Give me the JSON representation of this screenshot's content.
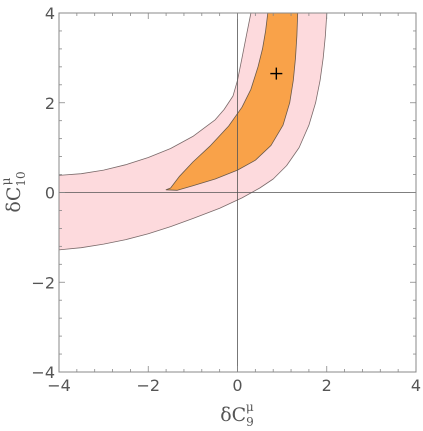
{
  "chart_data": {
    "type": "contour",
    "xlabel": {
      "base": "δC",
      "sub": "9",
      "sup": "μ"
    },
    "ylabel": {
      "base": "δC",
      "sub": "10",
      "sup": "μ"
    },
    "xlim": [
      -4,
      4
    ],
    "ylim": [
      -4,
      4
    ],
    "xticks": [
      -4,
      -2,
      0,
      2,
      4
    ],
    "yticks": [
      -4,
      -2,
      0,
      2,
      4
    ],
    "xtick_labels": [
      "−4",
      "−2",
      "0",
      "2",
      "4"
    ],
    "ytick_labels": [
      "−4",
      "−2",
      "0",
      "2",
      "4"
    ],
    "minor_ticks_per_interval": 4,
    "reference_lines": {
      "x": 0,
      "y": 0
    },
    "best_fit": {
      "x": 0.87,
      "y": 2.65,
      "marker": "plus"
    },
    "regions": [
      {
        "name": "outer",
        "fill": "#fddadd",
        "stroke": "#7a6a6a",
        "boundary": [
          [
            -4.0,
            0.38
          ],
          [
            -3.5,
            0.42
          ],
          [
            -3.0,
            0.5
          ],
          [
            -2.5,
            0.62
          ],
          [
            -2.0,
            0.78
          ],
          [
            -1.5,
            0.98
          ],
          [
            -1.0,
            1.25
          ],
          [
            -0.5,
            1.62
          ],
          [
            -0.3,
            1.85
          ],
          [
            -0.1,
            2.15
          ],
          [
            0.0,
            2.5
          ],
          [
            0.1,
            3.0
          ],
          [
            0.2,
            3.5
          ],
          [
            0.3,
            4.0
          ],
          [
            2.0,
            4.0
          ],
          [
            1.97,
            3.5
          ],
          [
            1.92,
            3.0
          ],
          [
            1.85,
            2.5
          ],
          [
            1.75,
            2.0
          ],
          [
            1.6,
            1.5
          ],
          [
            1.38,
            1.0
          ],
          [
            1.1,
            0.6
          ],
          [
            0.8,
            0.3
          ],
          [
            0.5,
            0.1
          ],
          [
            0.1,
            -0.12
          ],
          [
            -0.4,
            -0.35
          ],
          [
            -1.0,
            -0.58
          ],
          [
            -1.5,
            -0.76
          ],
          [
            -2.0,
            -0.92
          ],
          [
            -2.5,
            -1.05
          ],
          [
            -3.0,
            -1.15
          ],
          [
            -3.5,
            -1.23
          ],
          [
            -4.0,
            -1.28
          ]
        ]
      },
      {
        "name": "inner",
        "fill": "#f9a249",
        "stroke": "#6a5a4a",
        "boundary": [
          [
            -1.5,
            0.1
          ],
          [
            -1.3,
            0.36
          ],
          [
            -1.0,
            0.68
          ],
          [
            -0.6,
            1.05
          ],
          [
            -0.2,
            1.48
          ],
          [
            0.1,
            1.9
          ],
          [
            0.3,
            2.3
          ],
          [
            0.46,
            2.8
          ],
          [
            0.56,
            3.2
          ],
          [
            0.63,
            3.6
          ],
          [
            0.68,
            4.0
          ],
          [
            1.35,
            4.0
          ],
          [
            1.33,
            3.5
          ],
          [
            1.3,
            3.0
          ],
          [
            1.25,
            2.5
          ],
          [
            1.17,
            2.0
          ],
          [
            1.02,
            1.5
          ],
          [
            0.75,
            1.05
          ],
          [
            0.4,
            0.72
          ],
          [
            0.0,
            0.5
          ],
          [
            -0.5,
            0.3
          ],
          [
            -1.0,
            0.15
          ],
          [
            -1.35,
            0.05
          ],
          [
            -1.6,
            0.06
          ]
        ]
      }
    ],
    "frame_color": "#888888",
    "reference_line_color": "#555555"
  }
}
